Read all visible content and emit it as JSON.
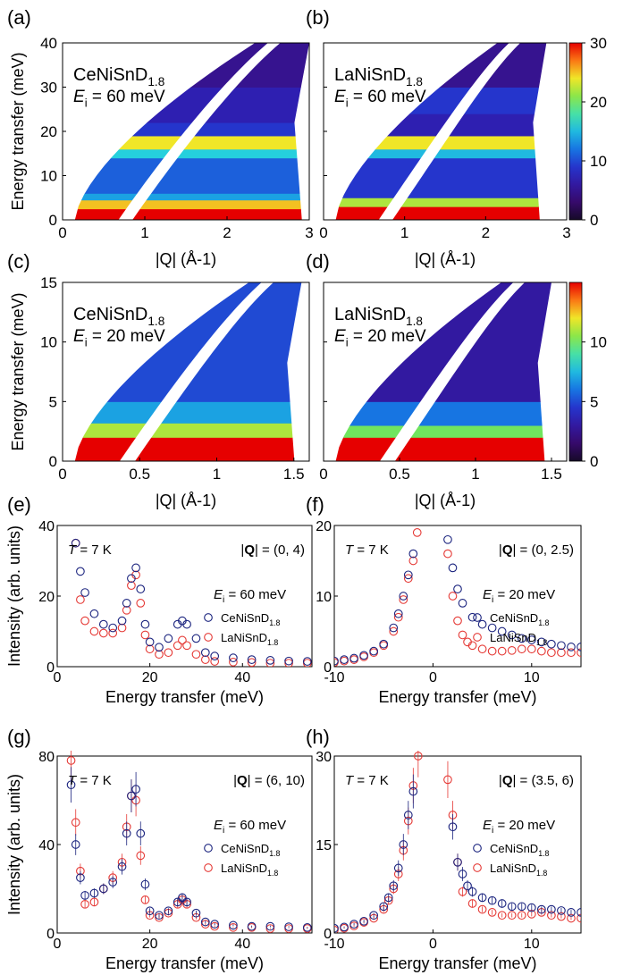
{
  "chart_data": [
    {
      "type": "heatmap",
      "panel": "(a)",
      "sample": {
        "base": "CeNiSnD",
        "sub": "1.8"
      },
      "ei": "= 60 meV",
      "xlabel": "|Q| (Å-1)",
      "ylabel": "Energy transfer (meV)",
      "xlim": [
        0,
        3
      ],
      "ylim": [
        0,
        40
      ],
      "xticks": [
        0,
        1,
        2,
        3
      ],
      "yticks": [
        0,
        10,
        20,
        30,
        40
      ],
      "qmax": 3.0,
      "gap": [
        0.68,
        0.85
      ],
      "bands": [
        {
          "e": [
            0,
            2.5
          ],
          "v": 30
        },
        {
          "e": [
            2.5,
            4.5
          ],
          "v": 25
        },
        {
          "e": [
            4.5,
            6
          ],
          "v": 14
        },
        {
          "e": [
            6,
            14
          ],
          "v": 11
        },
        {
          "e": [
            14,
            16
          ],
          "v": 16
        },
        {
          "e": [
            16,
            19
          ],
          "v": 24
        },
        {
          "e": [
            19,
            22
          ],
          "v": 9
        },
        {
          "e": [
            22,
            30
          ],
          "v": 7
        },
        {
          "e": [
            30,
            40
          ],
          "v": 5
        }
      ]
    },
    {
      "type": "heatmap",
      "panel": "(b)",
      "sample": {
        "base": "LaNiSnD",
        "sub": "1.8"
      },
      "ei": "= 60 meV",
      "xlabel": "|Q| (Å-1)",
      "ylabel": "",
      "xlim": [
        0,
        3
      ],
      "ylim": [
        0,
        40
      ],
      "xticks": [
        0,
        1,
        2,
        3
      ],
      "yticks": [
        0,
        10,
        20,
        30,
        40
      ],
      "qmax": 2.75,
      "gap": [
        0.68,
        0.85
      ],
      "bands": [
        {
          "e": [
            0,
            3
          ],
          "v": 30
        },
        {
          "e": [
            3,
            5
          ],
          "v": 22
        },
        {
          "e": [
            5,
            14
          ],
          "v": 9
        },
        {
          "e": [
            14,
            16
          ],
          "v": 15
        },
        {
          "e": [
            16,
            19
          ],
          "v": 24
        },
        {
          "e": [
            19,
            24
          ],
          "v": 7
        },
        {
          "e": [
            24,
            30
          ],
          "v": 9
        },
        {
          "e": [
            30,
            40
          ],
          "v": 5
        }
      ],
      "colorbar": {
        "min": 0,
        "max": 30,
        "ticks": [
          0,
          10,
          20,
          30
        ]
      }
    },
    {
      "type": "heatmap",
      "panel": "(c)",
      "sample": {
        "base": "CeNiSnD",
        "sub": "1.8"
      },
      "ei": "= 20 meV",
      "xlabel": "|Q| (Å-1)",
      "ylabel": "Energy transfer (meV)",
      "xlim": [
        0,
        1.6
      ],
      "ylim": [
        0,
        15
      ],
      "xticks": [
        0,
        0.5,
        1,
        1.5
      ],
      "yticks": [
        0,
        5,
        10,
        15
      ],
      "qmax": 1.55,
      "gap": [
        0.37,
        0.47
      ],
      "bands": [
        {
          "e": [
            0,
            2
          ],
          "v": 15
        },
        {
          "e": [
            2,
            3.2
          ],
          "v": 11
        },
        {
          "e": [
            3.2,
            5
          ],
          "v": 7
        },
        {
          "e": [
            5,
            15
          ],
          "v": 5
        }
      ]
    },
    {
      "type": "heatmap",
      "panel": "(d)",
      "sample": {
        "base": "LaNiSnD",
        "sub": "1.8"
      },
      "ei": "= 20 meV",
      "xlabel": "|Q| (Å-1)",
      "ylabel": "",
      "xlim": [
        0,
        1.6
      ],
      "ylim": [
        0,
        15
      ],
      "xticks": [
        0,
        0.5,
        1,
        1.5
      ],
      "yticks": [
        0,
        5,
        10,
        15
      ],
      "qmax": 1.5,
      "gap": [
        0.37,
        0.47
      ],
      "bands": [
        {
          "e": [
            0,
            2
          ],
          "v": 15
        },
        {
          "e": [
            2,
            3
          ],
          "v": 10
        },
        {
          "e": [
            3,
            5
          ],
          "v": 6
        },
        {
          "e": [
            5,
            15
          ],
          "v": 3
        }
      ],
      "colorbar": {
        "min": 0,
        "max": 15,
        "ticks": [
          0,
          5,
          10
        ]
      }
    },
    {
      "type": "scatter",
      "panel": "(e)",
      "temperature": "= 7 K",
      "q_range": "= (0, 4)",
      "ei": "= 60 meV",
      "xlabel": "Energy transfer (meV)",
      "ylabel": "Intensity (arb. units)",
      "xlim": [
        0,
        55
      ],
      "ylim": [
        0,
        40
      ],
      "xticks": [
        0,
        20,
        40
      ],
      "yticks": [
        0,
        20,
        40
      ],
      "series": [
        {
          "name": {
            "base": "CeNiSnD",
            "sub": "1.8"
          },
          "color": "#1a237e",
          "x": [
            4,
            5,
            6,
            8,
            10,
            12,
            14,
            15,
            16,
            17,
            18,
            19,
            20,
            22,
            24,
            26,
            27,
            28,
            30,
            32,
            34,
            38,
            42,
            46,
            50,
            54
          ],
          "y": [
            35,
            27,
            21,
            15,
            12,
            11,
            13,
            18,
            25,
            28,
            22,
            12,
            7,
            5.5,
            8,
            12,
            13,
            12,
            8,
            4,
            3,
            2.5,
            2,
            1.8,
            1.6,
            1.5
          ]
        },
        {
          "name": {
            "base": "LaNiSnD",
            "sub": "1.8"
          },
          "color": "#e53935",
          "x": [
            4,
            5,
            6,
            8,
            10,
            12,
            14,
            15,
            16,
            17,
            18,
            19,
            20,
            22,
            24,
            26,
            27,
            28,
            30,
            32,
            34,
            38,
            42,
            46,
            50,
            54
          ],
          "y": [
            35,
            19,
            13,
            10,
            9.5,
            9.5,
            11,
            16,
            23,
            26,
            18,
            9,
            5,
            3.5,
            4,
            6,
            7.5,
            6,
            3.5,
            2,
            1.5,
            1.3,
            1.2,
            1,
            1,
            1
          ]
        }
      ]
    },
    {
      "type": "scatter",
      "panel": "(f)",
      "temperature": "= 7 K",
      "q_range": "= (0, 2.5)",
      "ei": "= 20 meV",
      "xlabel": "Energy transfer (meV)",
      "ylabel": "",
      "xlim": [
        -10,
        15
      ],
      "ylim": [
        0,
        20
      ],
      "xticks": [
        -10,
        0,
        10
      ],
      "yticks": [
        0,
        10,
        20
      ],
      "series": [
        {
          "name": {
            "base": "CeNiSnD",
            "sub": "1.8"
          },
          "color": "#1a237e",
          "x": [
            -10,
            -9,
            -8,
            -7,
            -6,
            -5,
            -4,
            -3.5,
            -3,
            -2.5,
            -2,
            1.5,
            2,
            2.5,
            3,
            4,
            5,
            6,
            7,
            8,
            9,
            10,
            11,
            12,
            13,
            14,
            15
          ],
          "y": [
            0.8,
            1,
            1.2,
            1.6,
            2.2,
            3.2,
            5.5,
            7.5,
            10,
            13,
            16,
            18,
            14,
            11,
            9,
            7,
            6,
            5.5,
            5,
            4.5,
            4,
            3.8,
            3.5,
            3.2,
            3,
            2.8,
            2.8
          ]
        },
        {
          "name": {
            "base": "LaNiSnD",
            "sub": "1.8"
          },
          "color": "#e53935",
          "x": [
            -10,
            -9,
            -8,
            -7,
            -6,
            -5,
            -4,
            -3.5,
            -3,
            -2.5,
            -2,
            -1.6,
            1.5,
            2,
            2.5,
            3,
            3.5,
            4,
            5,
            6,
            7,
            8,
            9,
            10,
            11,
            12,
            13,
            14,
            15
          ],
          "y": [
            0.6,
            0.8,
            1,
            1.4,
            2,
            3,
            5,
            7,
            9.5,
            12.5,
            15,
            19,
            16,
            10,
            6.5,
            4.5,
            3.5,
            3,
            2.5,
            2.2,
            2.2,
            2.3,
            2.5,
            2.5,
            2.2,
            2,
            2,
            2,
            2
          ]
        }
      ]
    },
    {
      "type": "scatter",
      "panel": "(g)",
      "temperature": "= 7 K",
      "q_range": "= (6, 10)",
      "ei": "= 60 meV",
      "xlabel": "Energy transfer (meV)",
      "ylabel": "Intensity (arb. units)",
      "xlim": [
        0,
        55
      ],
      "ylim": [
        0,
        80
      ],
      "xticks": [
        0,
        20,
        40
      ],
      "yticks": [
        0,
        40,
        80
      ],
      "series": [
        {
          "name": {
            "base": "CeNiSnD",
            "sub": "1.8"
          },
          "color": "#1a237e",
          "x": [
            3,
            4,
            5,
            6,
            8,
            10,
            12,
            14,
            15,
            16,
            17,
            18,
            19,
            20,
            22,
            24,
            26,
            27,
            28,
            30,
            32,
            34,
            38,
            42,
            46,
            50,
            54
          ],
          "y": [
            67,
            40,
            25,
            17,
            18,
            20,
            23,
            30,
            45,
            62,
            65,
            45,
            22,
            10,
            8,
            10,
            14,
            16,
            14,
            9,
            5,
            4,
            3.5,
            3,
            3,
            2.8,
            2.5
          ]
        },
        {
          "name": {
            "base": "LaNiSnD",
            "sub": "1.8"
          },
          "color": "#e53935",
          "x": [
            3,
            4,
            5,
            6,
            8,
            10,
            12,
            14,
            15,
            16,
            17,
            18,
            19,
            20,
            22,
            24,
            26,
            27,
            28,
            30,
            32,
            34,
            38,
            42,
            46,
            50,
            54
          ],
          "y": [
            78,
            50,
            28,
            13,
            14,
            20,
            25,
            32,
            48,
            62,
            60,
            35,
            15,
            8,
            7,
            9,
            13,
            15,
            13,
            7,
            4,
            3,
            2.5,
            2.5,
            2,
            2,
            2
          ]
        }
      ]
    },
    {
      "type": "scatter",
      "panel": "(h)",
      "temperature": "= 7 K",
      "q_range": "= (3.5, 6)",
      "ei": "= 20 meV",
      "xlabel": "Energy transfer (meV)",
      "ylabel": "",
      "xlim": [
        -10,
        15
      ],
      "ylim": [
        0,
        30
      ],
      "xticks": [
        -10,
        0,
        10
      ],
      "yticks": [
        0,
        15,
        30
      ],
      "series": [
        {
          "name": {
            "base": "CeNiSnD",
            "sub": "1.8"
          },
          "color": "#1a237e",
          "x": [
            -10,
            -9,
            -8,
            -7,
            -6,
            -5,
            -4.5,
            -4,
            -3.5,
            -3,
            -2.5,
            -2,
            2,
            2.5,
            3,
            3.5,
            4,
            5,
            6,
            7,
            8,
            9,
            10,
            11,
            12,
            13,
            14,
            15
          ],
          "y": [
            0.8,
            1,
            1.5,
            2,
            3,
            4.5,
            6,
            8,
            11,
            15,
            20,
            24,
            18,
            12,
            10,
            8,
            7,
            6,
            5.5,
            5,
            4.5,
            4.5,
            4.3,
            4,
            4,
            3.8,
            3.5,
            3.5
          ]
        },
        {
          "name": {
            "base": "LaNiSnD",
            "sub": "1.8"
          },
          "color": "#e53935",
          "x": [
            -10,
            -9,
            -8,
            -7,
            -6,
            -5,
            -4.5,
            -4,
            -3.5,
            -3,
            -2.5,
            -2,
            -1.5,
            1.5,
            2,
            2.5,
            3,
            4,
            5,
            6,
            7,
            8,
            9,
            10,
            11,
            12,
            13,
            14,
            15
          ],
          "y": [
            0.5,
            0.8,
            1.2,
            1.8,
            2.5,
            4,
            5.5,
            7.5,
            10,
            14,
            19,
            25,
            30,
            26,
            20,
            12,
            7,
            5,
            4,
            3.5,
            3,
            3,
            3,
            3.2,
            3.5,
            3,
            2.8,
            2.5,
            2.5
          ]
        }
      ]
    }
  ]
}
